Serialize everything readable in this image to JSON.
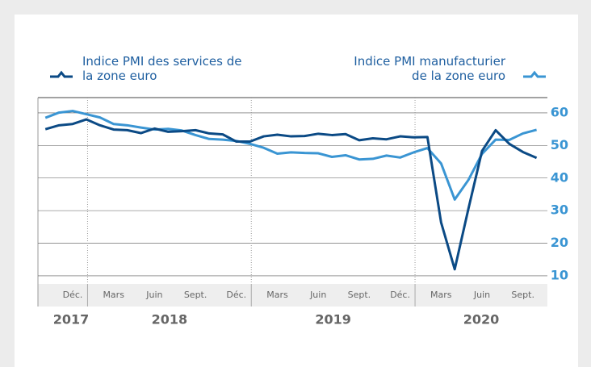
{
  "chart_data": {
    "type": "line",
    "categories": [
      null,
      null,
      "Déc.",
      null,
      null,
      "Mars",
      null,
      null,
      "Juin",
      null,
      null,
      "Sept.",
      null,
      null,
      "Déc.",
      null,
      null,
      "Mars",
      null,
      null,
      "Juin",
      null,
      null,
      "Sept.",
      null,
      null,
      "Déc.",
      null,
      null,
      "Mars",
      null,
      null,
      "Juin",
      null,
      null,
      "Sept.",
      null
    ],
    "years": [
      "2017",
      "2018",
      "2019",
      "2020"
    ],
    "series": [
      {
        "name": "Indice PMI des services de la zone euro",
        "color": "#0b4a85",
        "values": [
          55.0,
          56.2,
          56.6,
          58.0,
          56.2,
          54.9,
          54.7,
          53.8,
          55.2,
          54.2,
          54.4,
          54.7,
          53.7,
          53.4,
          51.2,
          51.2,
          52.8,
          53.3,
          52.8,
          52.9,
          53.6,
          53.2,
          53.5,
          51.6,
          52.2,
          51.9,
          52.8,
          52.5,
          52.6,
          26.4,
          12.0,
          30.5,
          48.3,
          54.7,
          50.5,
          48.0,
          46.2
        ]
      },
      {
        "name": "Indice PMI manufacturier de la zone euro",
        "color": "#3a95d3",
        "values": [
          58.5,
          60.1,
          60.6,
          59.6,
          58.6,
          56.6,
          56.2,
          55.5,
          54.9,
          55.1,
          54.6,
          53.2,
          52.0,
          51.8,
          51.4,
          50.5,
          49.3,
          47.5,
          47.9,
          47.7,
          47.6,
          46.5,
          47.0,
          45.7,
          45.9,
          46.9,
          46.3,
          47.9,
          49.2,
          44.5,
          33.4,
          39.4,
          47.4,
          51.8,
          51.7,
          53.7,
          54.8
        ]
      }
    ],
    "ylim": [
      7.5,
      64.7
    ],
    "yticks": [
      10,
      20,
      30,
      40,
      50,
      60
    ],
    "grid": true
  }
}
